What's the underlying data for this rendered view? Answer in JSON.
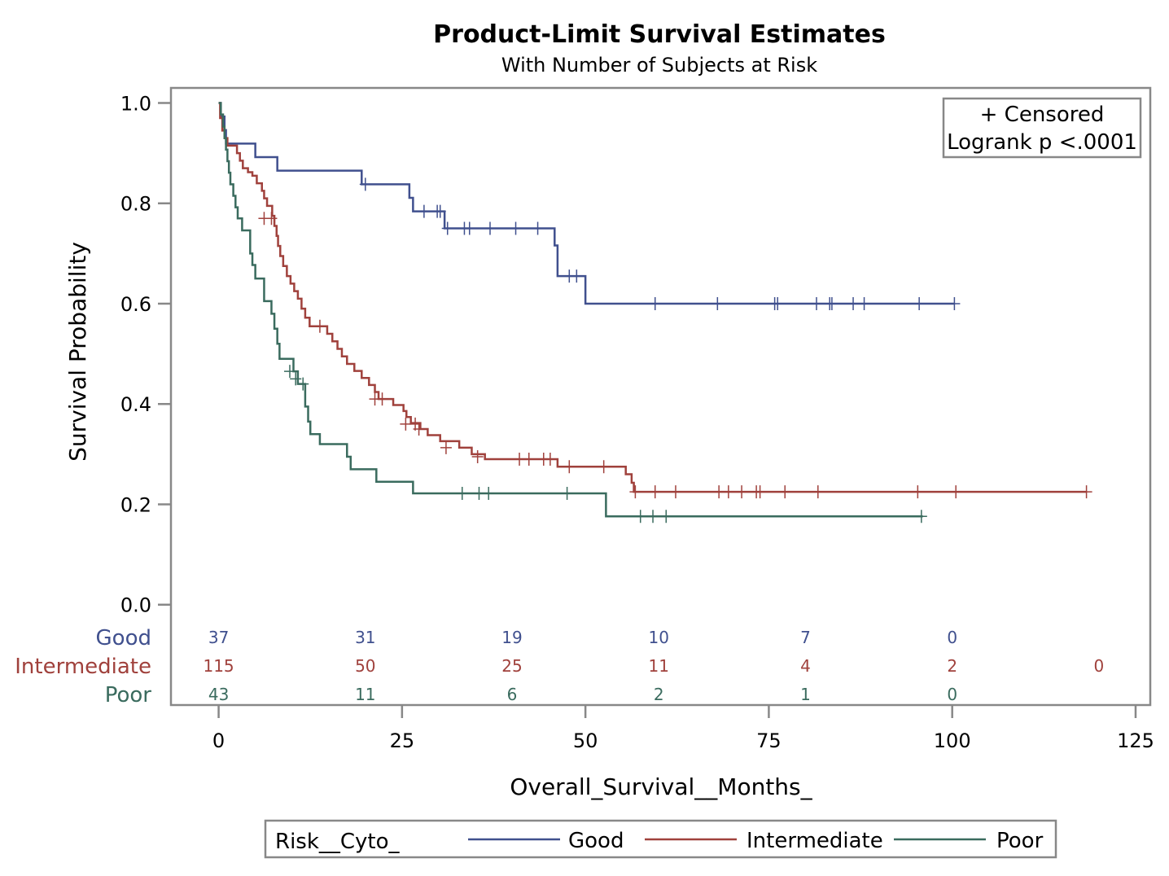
{
  "chart_data": {
    "type": "line",
    "title": "Product-Limit Survival Estimates",
    "subtitle": "With Number of Subjects at Risk",
    "xlabel": "Overall_Survival__Months_",
    "ylabel": "Survival Probability",
    "xlim": [
      -6.5,
      127
    ],
    "ylim": [
      -0.2,
      1.03
    ],
    "x_ticks": [
      0,
      25,
      50,
      75,
      100,
      125
    ],
    "x_tick_labels": [
      "0",
      "25",
      "50",
      "75",
      "100",
      "125"
    ],
    "y_ticks": [
      0.0,
      0.2,
      0.4,
      0.6,
      0.8,
      1.0
    ],
    "y_tick_labels": [
      "0.0",
      "0.2",
      "0.4",
      "0.6",
      "0.8",
      "1.0"
    ],
    "grid": false,
    "inset": [
      "+ Censored",
      "Logrank p <.0001"
    ],
    "legend": {
      "title": "Risk__Cyto_",
      "placement": "bottom",
      "items": [
        "Good",
        "Intermediate",
        "Poor"
      ]
    },
    "at_risk": {
      "times": [
        0,
        20,
        40,
        60,
        80,
        100,
        120
      ],
      "rows": [
        {
          "name": "Good",
          "counts": [
            "37",
            "31",
            "19",
            "10",
            "7",
            "0",
            ""
          ]
        },
        {
          "name": "Intermediate",
          "counts": [
            "115",
            "50",
            "25",
            "11",
            "4",
            "2",
            "0"
          ]
        },
        {
          "name": "Poor",
          "counts": [
            "43",
            "11",
            "6",
            "2",
            "1",
            "0",
            ""
          ]
        }
      ]
    },
    "series": [
      {
        "name": "Good",
        "color": "#40508e",
        "steps": [
          [
            0,
            1.0
          ],
          [
            0.3,
            0.973
          ],
          [
            0.8,
            0.946
          ],
          [
            1.0,
            0.919
          ],
          [
            5,
            0.892
          ],
          [
            8,
            0.865
          ],
          [
            19.5,
            0.838
          ],
          [
            26,
            0.811
          ],
          [
            26.5,
            0.784
          ],
          [
            30.8,
            0.75
          ],
          [
            45.8,
            0.716
          ],
          [
            46.2,
            0.655
          ],
          [
            50,
            0.6
          ]
        ],
        "censored": [
          [
            20,
            0.838
          ],
          [
            28,
            0.784
          ],
          [
            29.8,
            0.784
          ],
          [
            30.2,
            0.784
          ],
          [
            31.2,
            0.75
          ],
          [
            33.5,
            0.75
          ],
          [
            34.2,
            0.75
          ],
          [
            37,
            0.75
          ],
          [
            40.5,
            0.75
          ],
          [
            43.5,
            0.75
          ],
          [
            47.8,
            0.655
          ],
          [
            48.8,
            0.655
          ],
          [
            59.5,
            0.6
          ],
          [
            68,
            0.6
          ],
          [
            75.8,
            0.6
          ],
          [
            76.2,
            0.6
          ],
          [
            81.5,
            0.6
          ],
          [
            83.3,
            0.6
          ],
          [
            83.6,
            0.6
          ],
          [
            86.5,
            0.6
          ],
          [
            88,
            0.6
          ],
          [
            95.5,
            0.6
          ],
          [
            100.3,
            0.6
          ]
        ],
        "end_x": 100.3
      },
      {
        "name": "Intermediate",
        "color": "#a0413c",
        "steps": [
          [
            0,
            1.0
          ],
          [
            0.2,
            0.97
          ],
          [
            0.5,
            0.945
          ],
          [
            0.8,
            0.93
          ],
          [
            1.2,
            0.915
          ],
          [
            2.5,
            0.9
          ],
          [
            2.9,
            0.885
          ],
          [
            3.3,
            0.87
          ],
          [
            4,
            0.862
          ],
          [
            4.6,
            0.855
          ],
          [
            5.2,
            0.84
          ],
          [
            5.9,
            0.825
          ],
          [
            6.2,
            0.81
          ],
          [
            6.6,
            0.795
          ],
          [
            7.3,
            0.775
          ],
          [
            7.6,
            0.755
          ],
          [
            7.9,
            0.735
          ],
          [
            8.1,
            0.715
          ],
          [
            8.4,
            0.695
          ],
          [
            8.8,
            0.675
          ],
          [
            9.3,
            0.655
          ],
          [
            9.8,
            0.64
          ],
          [
            10.3,
            0.625
          ],
          [
            10.8,
            0.61
          ],
          [
            11.3,
            0.59
          ],
          [
            11.8,
            0.572
          ],
          [
            12.4,
            0.555
          ],
          [
            14.8,
            0.54
          ],
          [
            15.5,
            0.525
          ],
          [
            16.2,
            0.51
          ],
          [
            16.8,
            0.495
          ],
          [
            17.5,
            0.48
          ],
          [
            18.5,
            0.466
          ],
          [
            19.5,
            0.452
          ],
          [
            20.5,
            0.438
          ],
          [
            21.3,
            0.424
          ],
          [
            21.8,
            0.41
          ],
          [
            23.8,
            0.398
          ],
          [
            25.2,
            0.386
          ],
          [
            25.6,
            0.374
          ],
          [
            26.2,
            0.362
          ],
          [
            27.5,
            0.35
          ],
          [
            28.5,
            0.338
          ],
          [
            30.2,
            0.326
          ],
          [
            32.8,
            0.313
          ],
          [
            34.5,
            0.3
          ],
          [
            36.3,
            0.29
          ],
          [
            46.2,
            0.275
          ],
          [
            55.5,
            0.26
          ],
          [
            56.3,
            0.243
          ],
          [
            56.6,
            0.225
          ]
        ],
        "censored": [
          [
            6.2,
            0.77
          ],
          [
            7.2,
            0.77
          ],
          [
            13.8,
            0.555
          ],
          [
            21.3,
            0.41
          ],
          [
            22.3,
            0.41
          ],
          [
            25.5,
            0.36
          ],
          [
            26.8,
            0.36
          ],
          [
            27.3,
            0.35
          ],
          [
            31,
            0.313
          ],
          [
            35.3,
            0.295
          ],
          [
            41,
            0.29
          ],
          [
            42.3,
            0.29
          ],
          [
            44.3,
            0.29
          ],
          [
            45.2,
            0.29
          ],
          [
            47.8,
            0.275
          ],
          [
            52.5,
            0.275
          ],
          [
            56.8,
            0.225
          ],
          [
            59.5,
            0.225
          ],
          [
            62.3,
            0.225
          ],
          [
            68.2,
            0.225
          ],
          [
            69.5,
            0.225
          ],
          [
            71.3,
            0.225
          ],
          [
            73.3,
            0.225
          ],
          [
            73.8,
            0.225
          ],
          [
            77.2,
            0.225
          ],
          [
            81.7,
            0.225
          ],
          [
            95.3,
            0.225
          ],
          [
            100.5,
            0.225
          ],
          [
            118.3,
            0.225
          ]
        ],
        "end_x": 118.3
      },
      {
        "name": "Poor",
        "color": "#3a6b5e",
        "steps": [
          [
            0,
            1.0
          ],
          [
            0.3,
            0.977
          ],
          [
            0.6,
            0.953
          ],
          [
            0.8,
            0.93
          ],
          [
            1.0,
            0.907
          ],
          [
            1.2,
            0.884
          ],
          [
            1.4,
            0.861
          ],
          [
            1.6,
            0.838
          ],
          [
            2.0,
            0.815
          ],
          [
            2.3,
            0.792
          ],
          [
            2.6,
            0.77
          ],
          [
            3.2,
            0.746
          ],
          [
            4.3,
            0.7
          ],
          [
            4.6,
            0.677
          ],
          [
            5.0,
            0.65
          ],
          [
            6.2,
            0.605
          ],
          [
            7.2,
            0.58
          ],
          [
            7.6,
            0.55
          ],
          [
            8.0,
            0.52
          ],
          [
            8.3,
            0.49
          ],
          [
            10.2,
            0.465
          ],
          [
            10.8,
            0.44
          ],
          [
            11.8,
            0.395
          ],
          [
            12.2,
            0.365
          ],
          [
            12.5,
            0.34
          ],
          [
            13.8,
            0.32
          ],
          [
            17.5,
            0.295
          ],
          [
            18.0,
            0.27
          ],
          [
            21.5,
            0.245
          ],
          [
            26.5,
            0.222
          ],
          [
            52.8,
            0.176
          ]
        ],
        "censored": [
          [
            9.7,
            0.465
          ],
          [
            10.5,
            0.45
          ],
          [
            11.5,
            0.44
          ],
          [
            33.2,
            0.222
          ],
          [
            35.5,
            0.222
          ],
          [
            36.8,
            0.222
          ],
          [
            47.5,
            0.222
          ],
          [
            57.5,
            0.176
          ],
          [
            59.2,
            0.176
          ],
          [
            61,
            0.176
          ],
          [
            95.8,
            0.176
          ]
        ],
        "end_x": 96
      }
    ]
  }
}
